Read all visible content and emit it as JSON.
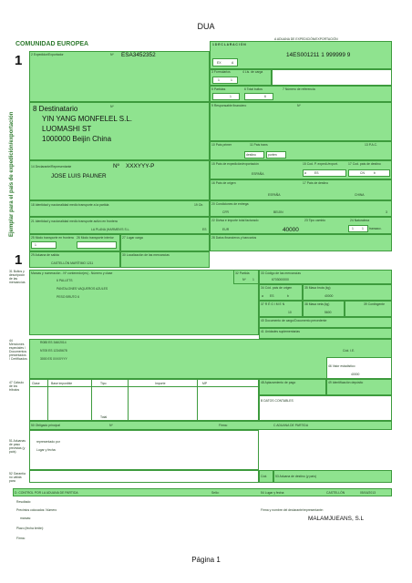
{
  "header": {
    "title": "DUA",
    "box_a": "A ADUANA DE EXPEDICIÓN/EXPORTACIÓN"
  },
  "community": "COMUNIDAD EUROPEA",
  "copy_number": "1",
  "copy_number_bottom": "1",
  "side_label": "Ejemplar para el país de expedición/exportación",
  "declaration": {
    "label": "1 D E C L A R A C I Ó N",
    "box1_a": "EX",
    "box1_b": "A"
  },
  "exporter": {
    "label": "2 Expedidor/Exportador",
    "n_label": "Nº",
    "number": "ESA3452352"
  },
  "reference_code": "14ES001211  1  999999 9",
  "forms": {
    "label": "3 Formularios",
    "a": "1",
    "b": "1",
    "lists_label": "4 Lis. de carga"
  },
  "packages": {
    "label": "5 Partidas",
    "value": "1",
    "total_label": "6 Total bultos",
    "total": "6",
    "ref_label": "7 Número de referencia"
  },
  "consignee": {
    "label": "8 Destinatario",
    "name": "YIN YANG MONFELEL S.L.",
    "street": "LUOMASHI ST",
    "city": "1000000 Beijin China",
    "n_label": "Nº"
  },
  "fin_resp": {
    "label": "9 Responsable financiero",
    "n_label": "Nº"
  },
  "boxes_10_13": {
    "first_country": "10 País primer",
    "trade": "11 País trans",
    "trade_sub": "destino",
    "porten": "porten",
    "cap": "13 P.A.C."
  },
  "declarant": {
    "label": "14 Declarante/Representante",
    "n_label": "Nº",
    "number": "XXXYYY-P",
    "name": "JOSE LUIS PAUNER"
  },
  "dispatch_country": {
    "label": "15 País de expedición/exportación",
    "value": "ESPAÑA",
    "code_label": "15 Cod. P. expedi./export.",
    "code_a": "ES",
    "code_b": "a",
    "dest_label": "17 Cod. país de destino",
    "dest_a": "CN",
    "dest_b": "b"
  },
  "origin_country": {
    "label": "16 País de origen",
    "value": "ESPAÑA",
    "dest_label": "17 País de destino",
    "dest_value": "CHINA"
  },
  "transport_departure": {
    "label": "18 Identidad y nacionalidad medio transporte a la partida",
    "ctr_label": "19 Ctr."
  },
  "delivery": {
    "label": "20 Condiciones de entrega",
    "incoterm": "CFR",
    "place": "BEIJIN",
    "code": "3"
  },
  "transport_border": {
    "label": "21 Identidad y nacionalidad medio transporte activo en frontera",
    "value": "LA PLANA (HARMEN'S S.L.",
    "country": "ES"
  },
  "currency": {
    "label": "22 Divisa e importe total facturado",
    "currency": "EUR",
    "amount": "40000",
    "rate_label": "23 Tipo cambio",
    "nature_label": "24 Naturaleza",
    "nature_a": "1",
    "nature_b": "1",
    "nature_c": "transacc."
  },
  "transport_mode": {
    "border_label": "25 Modo transporte en frontera",
    "border": "1",
    "internal_label": "26 Modo transporte interior",
    "loading_label": "27 Lugar carga",
    "financial_label": "28 Datos financieros y bancarios"
  },
  "exit_office": {
    "label": "29 Aduana de salida",
    "value": "CASTELLÓN  MARÍTIMO 1211",
    "location_label": "30 Localización de las mercancías"
  },
  "goods": {
    "section_label": "31 Bultos y descripción de las mercancías",
    "marks_label": "Marcas y numeración - Nº contenedor(es) - Número y clase",
    "line1": "6 PALLETS",
    "line2": "PANTALONES VAQUEROS AZULES",
    "line3": "PESO BRUTO 6",
    "item_label": "32 Partida",
    "item_no": "1",
    "item_n": "Nº",
    "commodity_label": "33 Código de las mercancías",
    "commodity": "6703000000",
    "origin_code_label": "34 Cód. país de origen",
    "origin_a": "a",
    "origin_code": "ES",
    "origin_b": "b",
    "gross_label": "35 Masa bruta (kg)",
    "gross": "40000",
    "regime_label": "37 R É G I M E N",
    "regime": "10",
    "net_label": "38 Masa neta (kg)",
    "net": "5600",
    "quota_label": "39 Contingente",
    "summary_label": "40 Documento de cargo/Documento precedente",
    "supp_label": "41 Unidades suplementarias"
  },
  "mentions": {
    "label": "44 Menciones especiales / Documentos presentados / Certificados",
    "l1": "R085 ES 346/2014",
    "l2": "N705 ES 12345678",
    "l3": "3000 ES XXXXYYY",
    "cod_label": "Cód. I.E.",
    "stat_label": "46 Valor estadístico",
    "stat": "40000"
  },
  "tax": {
    "label": "47 Cálculo de los tributos",
    "col_class": "Clase",
    "col_base": "Base imponible",
    "col_type": "Tipo",
    "col_amount": "Importe",
    "col_mp": "MP",
    "deferred_label": "48 Aplazamiento de pago",
    "deposit_label": "49 Identificación depósito",
    "total_label": "Total",
    "accounting_label": "B DATOS CONTABLES"
  },
  "principal": {
    "label": "50 Obligado principal",
    "n_label": "Nº",
    "sign_label": "Firma:",
    "office_label": "C ADUANA DE PARTIDA",
    "represented": "representado por",
    "place_date": "Lugar y fecha:",
    "transit_label": "51 Aduanas de paso previstas (y país)",
    "guarantee_label": "52 Garantía no válida para",
    "code_label": "Cód.",
    "dest_office_label": "53 Aduana de destino (y país)"
  },
  "control": {
    "label": "D. CONTROL POR LA ADUANA DE PARTIDA",
    "stamp_label": "Sello:",
    "result": "Resultado:",
    "seals": "Precintos colocados: Número",
    "marks": "marcas:",
    "term": "Plazo (fecha límite):",
    "signature": "Firma:",
    "place_label": "54 Lugar y fecha:",
    "place": "CASTELLÓN",
    "date": "05/16/2013",
    "decl_sign_label": "Firma y nombre del declarante/representante:",
    "decl_name": "MALAMJUEANS, S.L"
  },
  "footer": {
    "page": "Página 1"
  }
}
